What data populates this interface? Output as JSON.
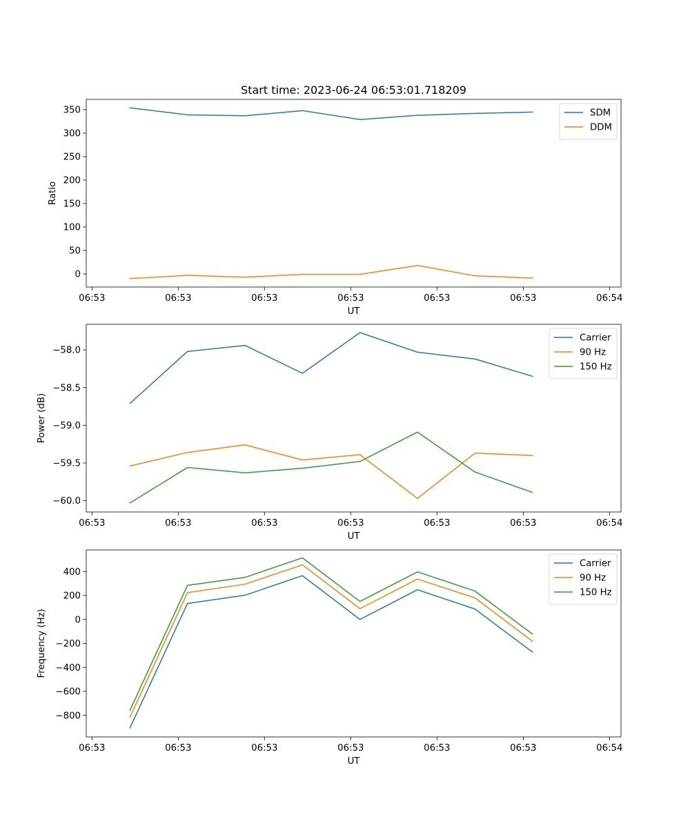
{
  "figure": {
    "title": "Start time: 2023-06-24 06:53:01.718209"
  },
  "chart_data": [
    {
      "type": "line",
      "title": "Start time: 2023-06-24 06:53:01.718209",
      "xlabel": "UT",
      "ylabel": "Ratio",
      "x_tick_labels": [
        "06:53",
        "06:53",
        "06:53",
        "06:53",
        "06:53",
        "06:53",
        "06:54"
      ],
      "y_ticks": [
        0,
        50,
        100,
        150,
        200,
        250,
        300,
        350
      ],
      "y_tick_labels": [
        "0",
        "50",
        "100",
        "150",
        "200",
        "250",
        "300",
        "350"
      ],
      "xlim": [
        -0.1,
        9.2
      ],
      "ylim": [
        -28,
        372
      ],
      "x": [
        0.66,
        1.66,
        2.66,
        3.66,
        4.66,
        5.66,
        6.66,
        7.66
      ],
      "legend": "top-right",
      "grid": false,
      "series": [
        {
          "name": "SDM",
          "color": "#1f77b4",
          "values": [
            354,
            339,
            337,
            348,
            329,
            338,
            342,
            345
          ]
        },
        {
          "name": "DDM",
          "color": "#ff7f0e",
          "values": [
            -10,
            -3,
            -7,
            -1,
            -1,
            18,
            -4,
            -9
          ]
        }
      ]
    },
    {
      "type": "line",
      "title": "",
      "xlabel": "UT",
      "ylabel": "Power (dB)",
      "x_tick_labels": [
        "06:53",
        "06:53",
        "06:53",
        "06:53",
        "06:53",
        "06:53",
        "06:54"
      ],
      "y_ticks": [
        -60.0,
        -59.5,
        -59.0,
        -58.5,
        -58.0
      ],
      "y_tick_labels": [
        "−60.0",
        "−59.5",
        "−59.0",
        "−58.5",
        "−58.0"
      ],
      "xlim": [
        -0.1,
        9.2
      ],
      "ylim": [
        -60.15,
        -57.66
      ],
      "x": [
        0.66,
        1.66,
        2.66,
        3.66,
        4.66,
        5.66,
        6.66,
        7.66
      ],
      "legend": "top-right",
      "grid": false,
      "series": [
        {
          "name": "Carrier",
          "color": "#1f77b4",
          "values": [
            -58.71,
            -58.02,
            -57.94,
            -58.31,
            -57.77,
            -58.03,
            -58.12,
            -58.35
          ]
        },
        {
          "name": "90 Hz",
          "color": "#ff7f0e",
          "values": [
            -59.54,
            -59.36,
            -59.26,
            -59.46,
            -59.39,
            -59.97,
            -59.37,
            -59.4
          ]
        },
        {
          "name": "150 Hz",
          "color": "#2ca02c",
          "values": [
            -60.03,
            -59.56,
            -59.63,
            -59.57,
            -59.48,
            -59.09,
            -59.62,
            -59.89
          ]
        }
      ]
    },
    {
      "type": "line",
      "title": "",
      "xlabel": "UT",
      "ylabel": "Frequency (Hz)",
      "x_tick_labels": [
        "06:53",
        "06:53",
        "06:53",
        "06:53",
        "06:53",
        "06:53",
        "06:54"
      ],
      "y_ticks": [
        -800,
        -600,
        -400,
        -200,
        0,
        200,
        400
      ],
      "y_tick_labels": [
        "−800",
        "−600",
        "−400",
        "−200",
        "0",
        "200",
        "400"
      ],
      "xlim": [
        -0.1,
        9.2
      ],
      "ylim": [
        -980,
        580
      ],
      "x": [
        0.66,
        1.66,
        2.66,
        3.66,
        4.66,
        5.66,
        6.66,
        7.66
      ],
      "legend": "top-right",
      "grid": false,
      "series": [
        {
          "name": "Carrier",
          "color": "#1f77b4",
          "values": [
            -905,
            133,
            202,
            365,
            0,
            248,
            87,
            -272
          ]
        },
        {
          "name": "90 Hz",
          "color": "#ff7f0e",
          "values": [
            -815,
            224,
            294,
            456,
            90,
            337,
            180,
            -182
          ]
        },
        {
          "name": "150 Hz",
          "color": "#2ca02c",
          "values": [
            -758,
            284,
            351,
            514,
            150,
            397,
            237,
            -122
          ]
        }
      ]
    }
  ]
}
